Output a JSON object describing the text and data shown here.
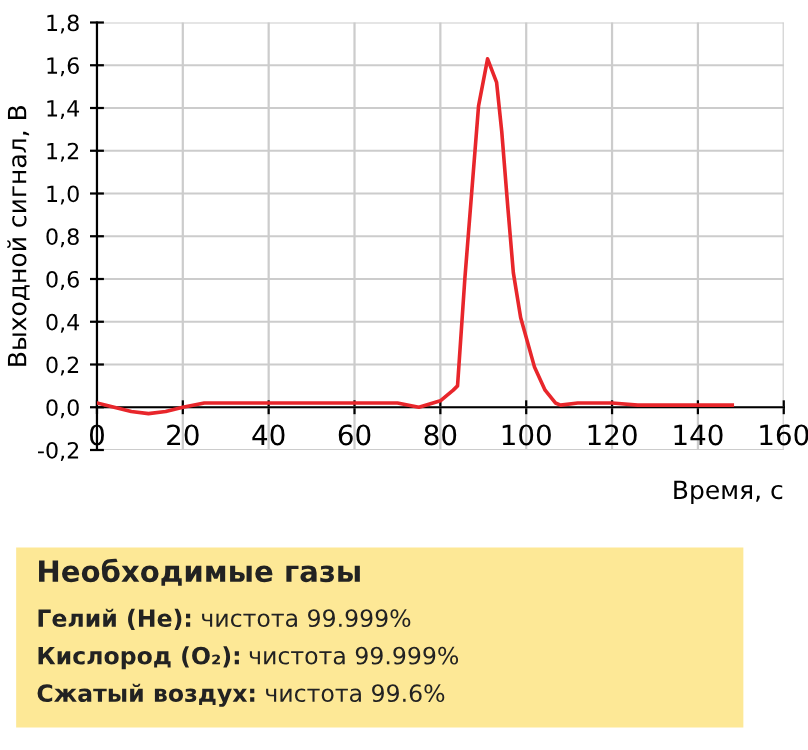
{
  "chart_data": {
    "type": "line",
    "xlabel": "Время, с",
    "ylabel": "Выходной сигнал, В",
    "series": [
      {
        "color": "#e8262b",
        "x": [
          0,
          4,
          8,
          12,
          16,
          20,
          25,
          30,
          40,
          50,
          60,
          70,
          75,
          80,
          83,
          84,
          85.7,
          88.9,
          91,
          93.1,
          94.3,
          95.7,
          97,
          98.7,
          101.9,
          104.4,
          106.8,
          108,
          112,
          120,
          126,
          135,
          148
        ],
        "values": [
          0.02,
          0.0,
          -0.02,
          -0.03,
          -0.02,
          0.0,
          0.02,
          0.02,
          0.02,
          0.02,
          0.02,
          0.02,
          0.0,
          0.03,
          0.08,
          0.1,
          0.6,
          1.41,
          1.63,
          1.52,
          1.29,
          0.94,
          0.63,
          0.42,
          0.19,
          0.08,
          0.02,
          0.01,
          0.02,
          0.02,
          0.01,
          0.01,
          0.01
        ]
      }
    ],
    "xlim": [
      0,
      160
    ],
    "xticks": [
      0,
      20,
      40,
      60,
      80,
      100,
      120,
      140,
      160
    ],
    "ylim": [
      -0.2,
      1.8
    ],
    "yticks": [
      {
        "value": -0.2,
        "label": "-0,2"
      },
      {
        "value": 0,
        "label": "0,0"
      },
      {
        "value": 0.2,
        "label": "0,2"
      },
      {
        "value": 0.4,
        "label": "0,4"
      },
      {
        "value": 0.6,
        "label": "0,6"
      },
      {
        "value": 0.8,
        "label": "0,8"
      },
      {
        "value": 1.0,
        "label": "1,0"
      },
      {
        "value": 1.2,
        "label": "1,2"
      },
      {
        "value": 1.4,
        "label": "1,4"
      },
      {
        "value": 1.6,
        "label": "1,6"
      },
      {
        "value": 1.8,
        "label": "1,8"
      }
    ],
    "grid": true,
    "legend": false,
    "marker": "none",
    "line_style": "solid",
    "annotations": [
      "Необходимые газы",
      "Гелий (He): чистота 99.999%",
      "Кислород (O₂): чистота 99.999%",
      "Сжатый воздух: чистота 99.6%"
    ]
  }
}
